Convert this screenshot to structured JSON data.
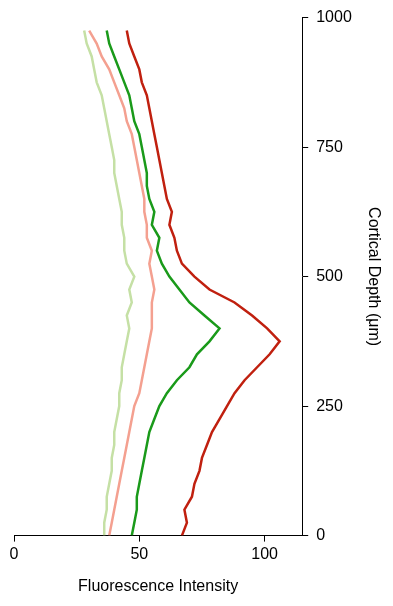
{
  "chart_data": {
    "type": "line",
    "x_label": "Fluorescence Intensity",
    "y_label": "Cortical Depth (μm)",
    "xlim": [
      0,
      115
    ],
    "xticks": [
      0,
      50,
      100
    ],
    "ylim": [
      0,
      1000
    ],
    "yticks": [
      0,
      250,
      500,
      750,
      1000
    ],
    "grid": false,
    "y": [
      0,
      25,
      50,
      75,
      100,
      125,
      150,
      175,
      200,
      225,
      250,
      275,
      300,
      325,
      350,
      375,
      400,
      425,
      450,
      475,
      500,
      525,
      550,
      575,
      600,
      625,
      650,
      675,
      700,
      725,
      750,
      775,
      800,
      825,
      850,
      875,
      900,
      925,
      950,
      975
    ],
    "series": [
      {
        "color": "#c5e0a5",
        "values": [
          36,
          36,
          37,
          37,
          38,
          39,
          39,
          40,
          40,
          41,
          42,
          42,
          43,
          43,
          44,
          45,
          46,
          45,
          47,
          46,
          48,
          45,
          44,
          44,
          43,
          43,
          42,
          41,
          40,
          40,
          39,
          38,
          37,
          36,
          35,
          33,
          32,
          31,
          29,
          28
        ]
      },
      {
        "color": "#f4a090",
        "values": [
          38,
          39,
          40,
          41,
          42,
          43,
          44,
          45,
          46,
          47,
          48,
          50,
          51,
          52,
          53,
          54,
          55,
          55,
          55,
          56,
          55,
          54,
          55,
          53,
          53,
          52,
          52,
          51,
          50,
          49,
          48,
          47,
          45,
          44,
          42,
          40,
          38,
          35,
          33,
          30
        ]
      },
      {
        "color": "#1a9a1a",
        "values": [
          47,
          48,
          49,
          49,
          50,
          51,
          52,
          53,
          54,
          56,
          58,
          61,
          65,
          70,
          73,
          78,
          82,
          76,
          70,
          66,
          62,
          59,
          57,
          58,
          55,
          56,
          54,
          53,
          53,
          52,
          51,
          50,
          48,
          47,
          46,
          44,
          42,
          40,
          38,
          37
        ]
      },
      {
        "color": "#c0200f",
        "values": [
          67,
          69,
          68,
          71,
          72,
          74,
          75,
          77,
          79,
          82,
          85,
          88,
          92,
          97,
          102,
          106,
          101,
          95,
          88,
          78,
          72,
          67,
          65,
          64,
          62,
          63,
          61,
          60,
          59,
          58,
          57,
          56,
          55,
          54,
          53,
          51,
          50,
          48,
          46,
          45
        ]
      }
    ]
  }
}
